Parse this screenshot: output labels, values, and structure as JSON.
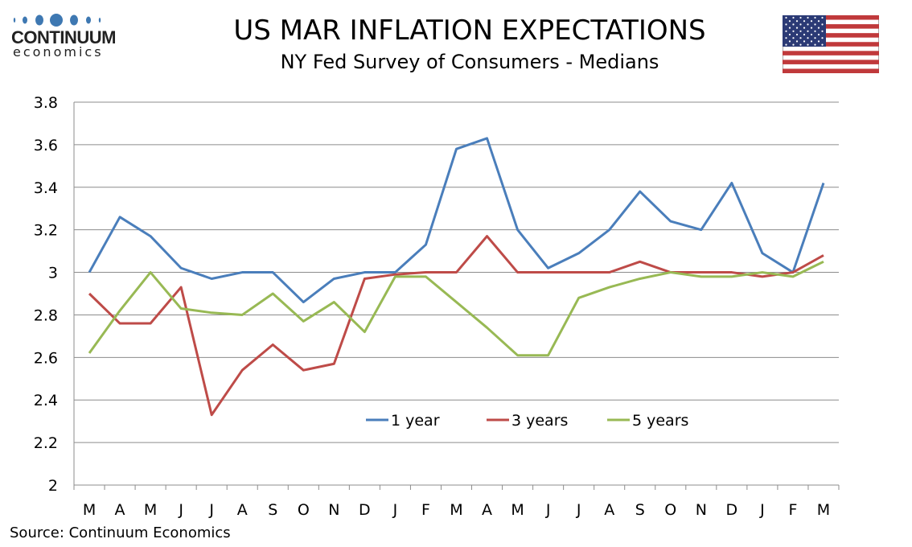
{
  "logo": {
    "name": "CONTINUUM",
    "sub": "economics"
  },
  "title": "US MAR INFLATION EXPECTATIONS",
  "subtitle": "NY Fed Survey of Consumers - Medians",
  "source": "Source: Continuum Economics",
  "colors": {
    "1 year": "#4a7ebb",
    "3 years": "#be4b48",
    "5 years": "#98b954"
  },
  "chart_data": {
    "type": "line",
    "title": "US MAR INFLATION EXPECTATIONS",
    "subtitle": "NY Fed Survey of Consumers - Medians",
    "xlabel": "",
    "ylabel": "",
    "ylim": [
      2,
      3.8
    ],
    "yticks": [
      2,
      2.2,
      2.4,
      2.6,
      2.8,
      3,
      3.2,
      3.4,
      3.6,
      3.8
    ],
    "yticklabels": [
      "2",
      "2.2",
      "2.4",
      "2.6",
      "2.8",
      "3",
      "3.2",
      "3.4",
      "3.6",
      "3.8"
    ],
    "categories": [
      "M",
      "A",
      "M",
      "J",
      "J",
      "A",
      "S",
      "O",
      "N",
      "D",
      "J",
      "F",
      "M",
      "A",
      "M",
      "J",
      "J",
      "A",
      "S",
      "O",
      "N",
      "D",
      "J",
      "F",
      "M"
    ],
    "grid": true,
    "legend": "bottom-center inside",
    "series": [
      {
        "name": "1 year",
        "values": [
          3.0,
          3.26,
          3.17,
          3.02,
          2.97,
          3.0,
          3.0,
          2.86,
          2.97,
          3.0,
          3.0,
          3.13,
          3.58,
          3.63,
          3.2,
          3.02,
          3.09,
          3.2,
          3.38,
          3.24,
          3.2,
          3.42,
          3.09,
          3.0,
          3.42
        ]
      },
      {
        "name": "3 years",
        "values": [
          2.9,
          2.76,
          2.76,
          2.93,
          2.33,
          2.54,
          2.66,
          2.54,
          2.57,
          2.97,
          2.99,
          3.0,
          3.0,
          3.17,
          3.0,
          3.0,
          3.0,
          3.0,
          3.05,
          3.0,
          3.0,
          3.0,
          2.98,
          3.0,
          3.08
        ]
      },
      {
        "name": "5 years",
        "values": [
          2.62,
          2.82,
          3.0,
          2.83,
          2.81,
          2.8,
          2.9,
          2.77,
          2.86,
          2.72,
          2.98,
          2.98,
          2.86,
          2.74,
          2.61,
          2.61,
          2.88,
          2.93,
          2.97,
          3.0,
          2.98,
          2.98,
          3.0,
          2.98,
          3.05
        ]
      }
    ]
  }
}
